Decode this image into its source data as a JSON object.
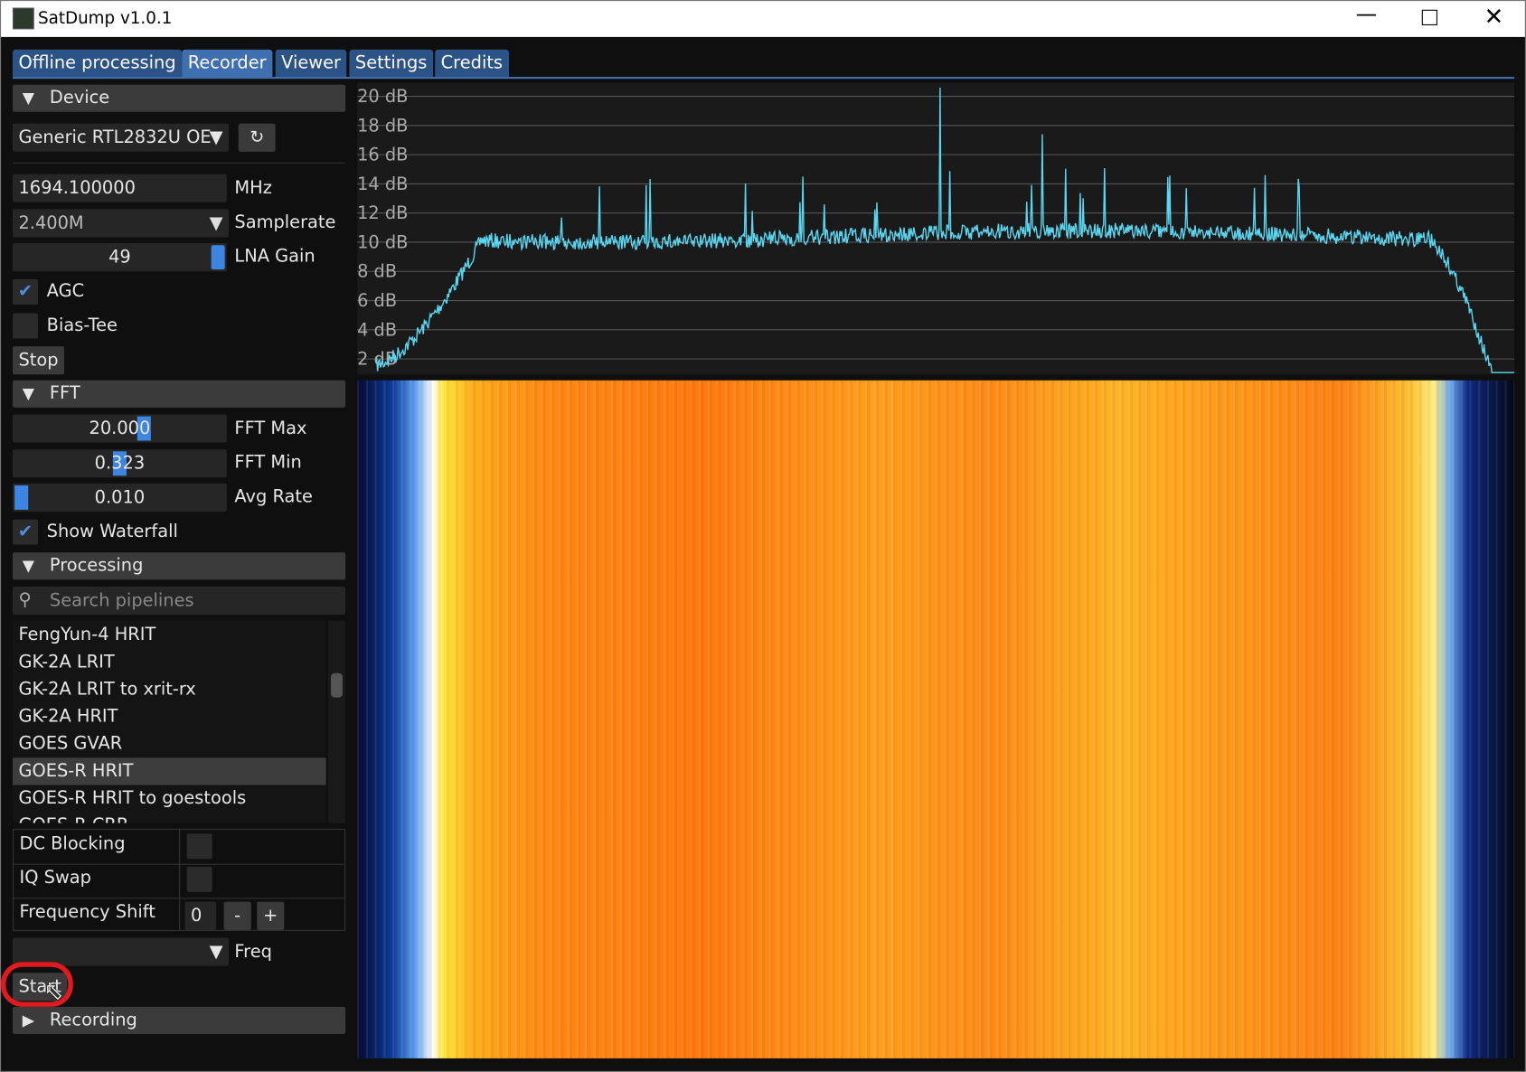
{
  "window": {
    "title": "SatDump v1.0.1"
  },
  "tabs": [
    "Offline processing",
    "Recorder",
    "Viewer",
    "Settings",
    "Credits"
  ],
  "device": {
    "header": "Device",
    "source": "Generic RTL2832U OE",
    "frequency": "1694.100000",
    "frequency_unit": "MHz",
    "samplerate": "2.400M",
    "samplerate_label": "Samplerate",
    "lna_gain": "49",
    "lna_gain_label": "LNA Gain",
    "agc": "AGC",
    "bias_tee": "Bias-Tee",
    "stop": "Stop"
  },
  "fft": {
    "header": "FFT",
    "fft_max": "20.000",
    "fft_max_label": "FFT Max",
    "fft_min": "0.323",
    "fft_min_label": "FFT Min",
    "avg_rate": "0.010",
    "avg_rate_label": "Avg Rate",
    "show_waterfall": "Show Waterfall"
  },
  "processing": {
    "header": "Processing",
    "search_placeholder": "Search pipelines",
    "pipelines": [
      "FengYun-4 HRIT",
      "GK-2A LRIT",
      "GK-2A LRIT to xrit-rx",
      "GK-2A HRIT",
      "GOES GVAR",
      "GOES-R HRIT",
      "GOES-R HRIT to goestools",
      "GOES-R CRR"
    ],
    "options": [
      "DC Blocking",
      "IQ Swap",
      "Frequency Shift"
    ],
    "frequency_shift": "0",
    "minus": "-",
    "plus": "+",
    "freq_label": "Freq",
    "start": "Start"
  },
  "recording": {
    "header": "Recording"
  },
  "spectrum": {
    "labels": [
      "20 dB",
      "18 dB",
      "16 dB",
      "14 dB",
      "12 dB",
      "10 dB",
      "8 dB",
      "6 dB",
      "4 dB",
      "2 dB"
    ]
  }
}
